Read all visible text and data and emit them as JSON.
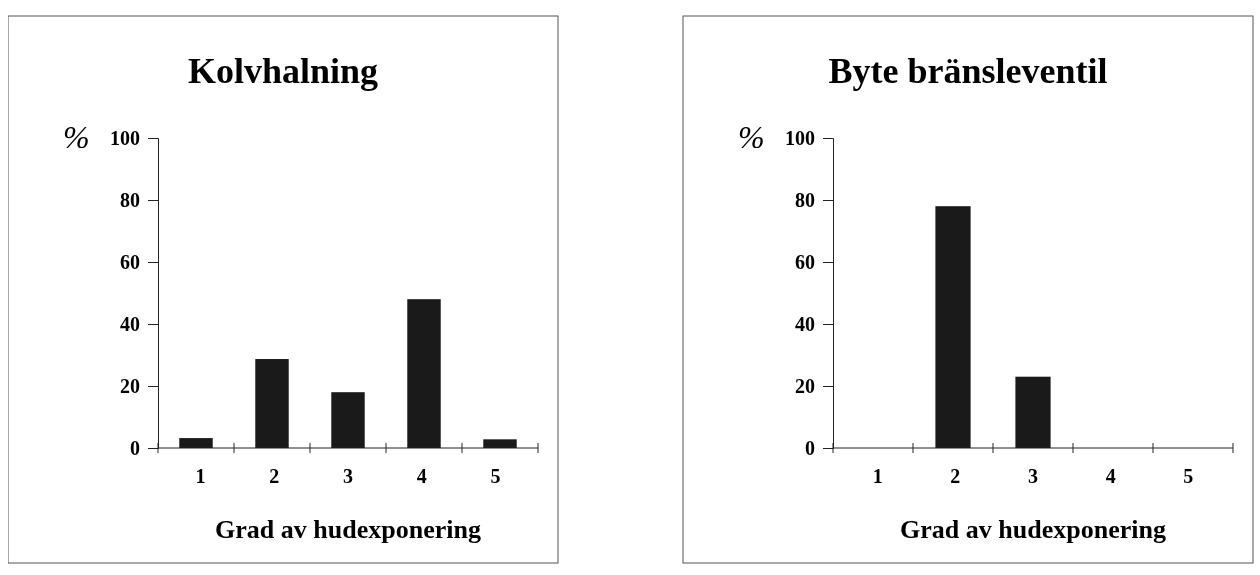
{
  "chart_data": [
    {
      "type": "bar",
      "title": "Kolvhalning",
      "ylabel": "%",
      "xlabel": "Grad av hudexponering",
      "categories": [
        "1",
        "2",
        "3",
        "4",
        "5"
      ],
      "values": [
        3.2,
        28.7,
        18,
        48,
        2.8
      ],
      "color": "#1a1a1a",
      "ylim": [
        0,
        100
      ],
      "yticks": [
        0,
        20,
        40,
        60,
        80,
        100
      ]
    },
    {
      "type": "bar",
      "title": "Byte bränsleventil",
      "ylabel": "%",
      "xlabel": "Grad av hudexponering",
      "categories": [
        "1",
        "2",
        "3",
        "4",
        "5"
      ],
      "values": [
        0,
        78,
        23,
        0,
        0
      ],
      "color": "#1a1a1a",
      "ylim": [
        0,
        100
      ],
      "yticks": [
        0,
        20,
        40,
        60,
        80,
        100
      ]
    }
  ]
}
